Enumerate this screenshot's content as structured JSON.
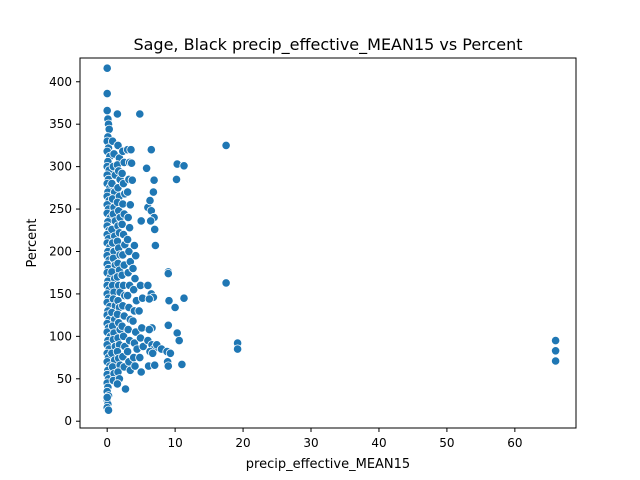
{
  "chart_data": {
    "type": "scatter",
    "title": "Sage, Black precip_effective_MEAN15 vs Percent",
    "xlabel": "precip_effective_MEAN15",
    "ylabel": "Percent",
    "xlim": [
      -4,
      69
    ],
    "ylim": [
      -8,
      428
    ],
    "xticks": [
      0,
      10,
      20,
      30,
      40,
      50,
      60
    ],
    "yticks": [
      0,
      50,
      100,
      150,
      200,
      250,
      300,
      350,
      400
    ],
    "grid": false,
    "legend": "none",
    "marker_color": "#1f77b4",
    "marker_edge": "#ffffff",
    "points": [
      [
        0.0,
        416
      ],
      [
        0.0,
        386
      ],
      [
        0.0,
        366
      ],
      [
        0.1,
        356
      ],
      [
        0.2,
        350
      ],
      [
        0.3,
        344
      ],
      [
        0.1,
        335
      ],
      [
        0.0,
        330
      ],
      [
        0.2,
        322
      ],
      [
        0.0,
        318
      ],
      [
        0.4,
        312
      ],
      [
        0.1,
        306
      ],
      [
        0.0,
        300
      ],
      [
        0.3,
        296
      ],
      [
        0.0,
        290
      ],
      [
        0.2,
        285
      ],
      [
        0.0,
        280
      ],
      [
        0.4,
        275
      ],
      [
        0.1,
        270
      ],
      [
        0.0,
        265
      ],
      [
        0.3,
        260
      ],
      [
        0.0,
        255
      ],
      [
        0.2,
        250
      ],
      [
        0.0,
        245
      ],
      [
        0.5,
        240
      ],
      [
        0.1,
        235
      ],
      [
        0.0,
        230
      ],
      [
        0.3,
        225
      ],
      [
        0.0,
        220
      ],
      [
        0.2,
        215
      ],
      [
        0.0,
        210
      ],
      [
        0.4,
        205
      ],
      [
        0.1,
        200
      ],
      [
        0.0,
        195
      ],
      [
        0.3,
        190
      ],
      [
        0.0,
        185
      ],
      [
        0.2,
        180
      ],
      [
        0.0,
        175
      ],
      [
        0.5,
        170
      ],
      [
        0.1,
        165
      ],
      [
        0.0,
        160
      ],
      [
        0.3,
        155
      ],
      [
        0.0,
        150
      ],
      [
        0.2,
        145
      ],
      [
        0.0,
        140
      ],
      [
        0.4,
        135
      ],
      [
        0.1,
        130
      ],
      [
        0.0,
        125
      ],
      [
        0.3,
        120
      ],
      [
        0.0,
        115
      ],
      [
        0.2,
        110
      ],
      [
        0.0,
        105
      ],
      [
        0.5,
        100
      ],
      [
        0.1,
        95
      ],
      [
        0.0,
        90
      ],
      [
        0.3,
        85
      ],
      [
        0.0,
        80
      ],
      [
        0.2,
        75
      ],
      [
        0.0,
        70
      ],
      [
        0.4,
        65
      ],
      [
        0.1,
        60
      ],
      [
        0.0,
        55
      ],
      [
        0.2,
        50
      ],
      [
        0.0,
        45
      ],
      [
        0.1,
        40
      ],
      [
        0.0,
        35
      ],
      [
        0.2,
        30
      ],
      [
        0.0,
        25
      ],
      [
        0.1,
        20
      ],
      [
        0.0,
        16
      ],
      [
        0.2,
        13
      ],
      [
        0.0,
        28
      ],
      [
        0.8,
        330
      ],
      [
        1.0,
        315
      ],
      [
        0.9,
        300
      ],
      [
        1.2,
        290
      ],
      [
        0.7,
        280
      ],
      [
        1.1,
        270
      ],
      [
        0.8,
        262
      ],
      [
        1.0,
        252
      ],
      [
        0.9,
        244
      ],
      [
        1.2,
        236
      ],
      [
        0.7,
        226
      ],
      [
        1.1,
        218
      ],
      [
        0.8,
        210
      ],
      [
        1.0,
        200
      ],
      [
        0.9,
        192
      ],
      [
        1.2,
        184
      ],
      [
        0.7,
        176
      ],
      [
        1.1,
        168
      ],
      [
        0.8,
        160
      ],
      [
        1.0,
        152
      ],
      [
        0.9,
        144
      ],
      [
        1.2,
        136
      ],
      [
        0.7,
        128
      ],
      [
        1.1,
        120
      ],
      [
        0.8,
        112
      ],
      [
        1.0,
        104
      ],
      [
        0.9,
        96
      ],
      [
        1.2,
        88
      ],
      [
        0.7,
        80
      ],
      [
        1.1,
        72
      ],
      [
        0.8,
        64
      ],
      [
        1.0,
        56
      ],
      [
        0.9,
        48
      ],
      [
        1.5,
        362
      ],
      [
        1.6,
        325
      ],
      [
        1.8,
        310
      ],
      [
        1.5,
        302
      ],
      [
        1.7,
        295
      ],
      [
        1.9,
        285
      ],
      [
        1.6,
        275
      ],
      [
        1.8,
        265
      ],
      [
        1.5,
        258
      ],
      [
        1.7,
        248
      ],
      [
        1.9,
        240
      ],
      [
        1.6,
        230
      ],
      [
        1.8,
        222
      ],
      [
        1.5,
        212
      ],
      [
        1.7,
        204
      ],
      [
        1.9,
        196
      ],
      [
        1.6,
        186
      ],
      [
        1.8,
        178
      ],
      [
        1.5,
        170
      ],
      [
        1.7,
        160
      ],
      [
        1.9,
        152
      ],
      [
        1.6,
        142
      ],
      [
        1.8,
        134
      ],
      [
        1.5,
        126
      ],
      [
        1.7,
        116
      ],
      [
        1.9,
        108
      ],
      [
        1.6,
        98
      ],
      [
        1.8,
        90
      ],
      [
        1.5,
        82
      ],
      [
        1.7,
        74
      ],
      [
        1.9,
        66
      ],
      [
        1.6,
        58
      ],
      [
        1.8,
        50
      ],
      [
        1.5,
        44
      ],
      [
        2.3,
        318
      ],
      [
        2.5,
        305
      ],
      [
        2.2,
        292
      ],
      [
        2.4,
        280
      ],
      [
        2.6,
        268
      ],
      [
        2.3,
        256
      ],
      [
        2.5,
        244
      ],
      [
        2.2,
        232
      ],
      [
        2.4,
        220
      ],
      [
        2.6,
        208
      ],
      [
        2.3,
        196
      ],
      [
        2.5,
        184
      ],
      [
        2.2,
        172
      ],
      [
        2.4,
        160
      ],
      [
        2.6,
        148
      ],
      [
        2.3,
        136
      ],
      [
        2.5,
        124
      ],
      [
        2.2,
        112
      ],
      [
        2.4,
        100
      ],
      [
        2.6,
        88
      ],
      [
        2.3,
        76
      ],
      [
        2.5,
        64
      ],
      [
        2.7,
        38
      ],
      [
        3.0,
        320
      ],
      [
        3.3,
        305
      ],
      [
        3.2,
        285
      ],
      [
        3.0,
        270
      ],
      [
        3.4,
        255
      ],
      [
        3.1,
        240
      ],
      [
        3.3,
        228
      ],
      [
        3.0,
        214
      ],
      [
        3.2,
        200
      ],
      [
        3.4,
        188
      ],
      [
        3.1,
        175
      ],
      [
        3.3,
        160
      ],
      [
        3.0,
        148
      ],
      [
        3.2,
        134
      ],
      [
        3.4,
        120
      ],
      [
        3.1,
        108
      ],
      [
        3.3,
        95
      ],
      [
        3.0,
        82
      ],
      [
        3.2,
        70
      ],
      [
        3.4,
        60
      ],
      [
        3.5,
        320
      ],
      [
        3.6,
        304
      ],
      [
        3.7,
        284
      ],
      [
        4.0,
        207
      ],
      [
        4.2,
        195
      ],
      [
        3.8,
        180
      ],
      [
        4.1,
        168
      ],
      [
        3.9,
        155
      ],
      [
        4.3,
        142
      ],
      [
        4.0,
        130
      ],
      [
        3.8,
        118
      ],
      [
        4.2,
        105
      ],
      [
        4.0,
        92
      ],
      [
        4.4,
        85
      ],
      [
        3.9,
        75
      ],
      [
        4.1,
        65
      ],
      [
        4.8,
        362
      ],
      [
        5.0,
        236
      ],
      [
        4.9,
        160
      ],
      [
        5.2,
        145
      ],
      [
        4.7,
        130
      ],
      [
        5.1,
        110
      ],
      [
        4.9,
        98
      ],
      [
        5.3,
        88
      ],
      [
        4.8,
        75
      ],
      [
        5.0,
        58
      ],
      [
        6.5,
        320
      ],
      [
        5.8,
        298
      ],
      [
        6.9,
        284
      ],
      [
        6.0,
        252
      ],
      [
        6.5,
        248
      ],
      [
        6.8,
        270
      ],
      [
        6.3,
        260
      ],
      [
        6.9,
        240
      ],
      [
        6.4,
        236
      ],
      [
        7.0,
        226
      ],
      [
        7.1,
        207
      ],
      [
        6.0,
        160
      ],
      [
        6.5,
        150
      ],
      [
        6.8,
        146
      ],
      [
        6.2,
        144
      ],
      [
        6.6,
        110
      ],
      [
        6.2,
        108
      ],
      [
        6.0,
        95
      ],
      [
        6.6,
        90
      ],
      [
        6.9,
        85
      ],
      [
        6.3,
        82
      ],
      [
        6.7,
        80
      ],
      [
        6.1,
        65
      ],
      [
        7.0,
        66
      ],
      [
        7.3,
        90
      ],
      [
        8.0,
        85
      ],
      [
        8.8,
        82
      ],
      [
        9.3,
        80
      ],
      [
        8.9,
        70
      ],
      [
        9.0,
        65
      ],
      [
        9.0,
        113
      ],
      [
        9.1,
        142
      ],
      [
        9.0,
        176
      ],
      [
        9.0,
        174
      ],
      [
        10.3,
        303
      ],
      [
        10.2,
        285
      ],
      [
        11.3,
        301
      ],
      [
        10.0,
        134
      ],
      [
        10.3,
        104
      ],
      [
        10.6,
        95
      ],
      [
        11.3,
        145
      ],
      [
        11.0,
        67
      ],
      [
        17.5,
        325
      ],
      [
        17.5,
        163
      ],
      [
        19.2,
        92
      ],
      [
        19.2,
        85
      ],
      [
        66.0,
        95
      ],
      [
        66.0,
        83
      ],
      [
        66.0,
        71
      ]
    ]
  }
}
